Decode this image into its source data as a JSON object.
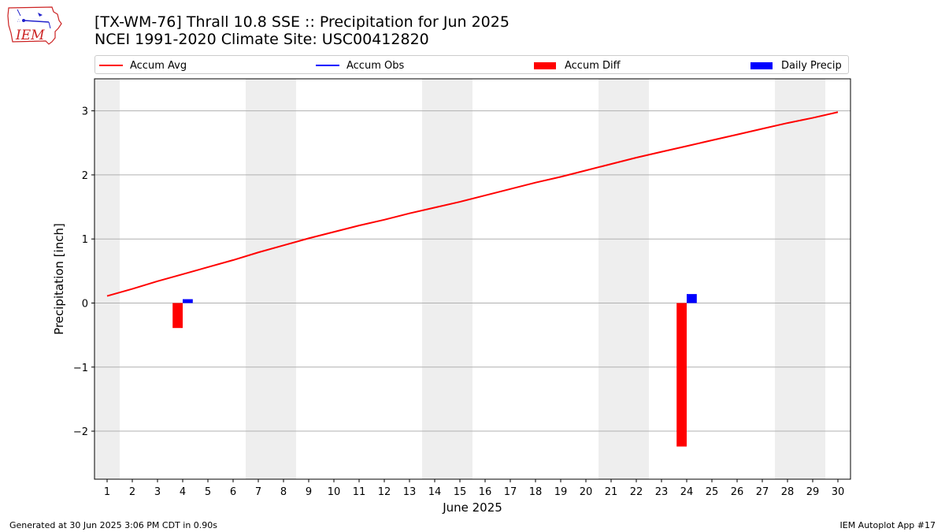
{
  "header": {
    "title_line1": "[TX-WM-76] Thrall 10.8 SSE :: Precipitation for Jun 2025",
    "title_line2": "NCEI 1991-2020 Climate Site: USC00412820"
  },
  "logo": {
    "text": "IEM",
    "color": "#cc2222",
    "icon": "iowa-state-outline-icon"
  },
  "footer": {
    "left": "Generated at 30 Jun 2025 3:06 PM CDT in 0.90s",
    "right": "IEM Autoplot App #17"
  },
  "legend": {
    "placement": "top, above plot",
    "items": [
      {
        "label": "Accum Avg",
        "color": "#ff0000",
        "kind": "line"
      },
      {
        "label": "Accum Obs",
        "color": "#0000ff",
        "kind": "line"
      },
      {
        "label": "Accum Diff",
        "color": "#ff0000",
        "kind": "box"
      },
      {
        "label": "Daily Precip",
        "color": "#0000ff",
        "kind": "box"
      }
    ]
  },
  "chart_data": {
    "type": "line",
    "xlabel": "June 2025",
    "ylabel": "Precipitation [inch]",
    "xlim": [
      0.5,
      30.5
    ],
    "ylim": [
      -2.75,
      3.5
    ],
    "yticks": [
      -2,
      -1,
      0,
      1,
      2,
      3
    ],
    "ytick_labels": [
      "−2",
      "−1",
      "0",
      "1",
      "2",
      "3"
    ],
    "xticks": [
      1,
      2,
      3,
      4,
      5,
      6,
      7,
      8,
      9,
      10,
      11,
      12,
      13,
      14,
      15,
      16,
      17,
      18,
      19,
      20,
      21,
      22,
      23,
      24,
      25,
      26,
      27,
      28,
      29,
      30
    ],
    "grid": "horizontal",
    "weekend_shading": [
      [
        0.5,
        1.5
      ],
      [
        6.5,
        8.5
      ],
      [
        13.5,
        15.5
      ],
      [
        20.5,
        22.5
      ],
      [
        27.5,
        29.5
      ]
    ],
    "shade_color": "#eeeeee",
    "series": [
      {
        "name": "Accum Avg",
        "type": "line",
        "color": "#ff0000",
        "x": [
          1,
          2,
          3,
          4,
          5,
          6,
          7,
          8,
          9,
          10,
          11,
          12,
          13,
          14,
          15,
          16,
          17,
          18,
          19,
          20,
          21,
          22,
          23,
          24,
          25,
          26,
          27,
          28,
          29,
          30
        ],
        "values": [
          0.11,
          0.22,
          0.34,
          0.45,
          0.56,
          0.67,
          0.79,
          0.9,
          1.01,
          1.11,
          1.21,
          1.3,
          1.4,
          1.49,
          1.58,
          1.68,
          1.78,
          1.88,
          1.97,
          2.07,
          2.17,
          2.27,
          2.36,
          2.45,
          2.54,
          2.63,
          2.72,
          2.81,
          2.89,
          2.98
        ]
      },
      {
        "name": "Accum Diff",
        "type": "bar",
        "color": "#ff0000",
        "x": [
          4,
          24
        ],
        "values": [
          -0.39,
          -2.24
        ]
      },
      {
        "name": "Daily Precip",
        "type": "bar",
        "color": "#0000ff",
        "x": [
          4,
          24
        ],
        "values": [
          0.06,
          0.14
        ]
      }
    ]
  }
}
